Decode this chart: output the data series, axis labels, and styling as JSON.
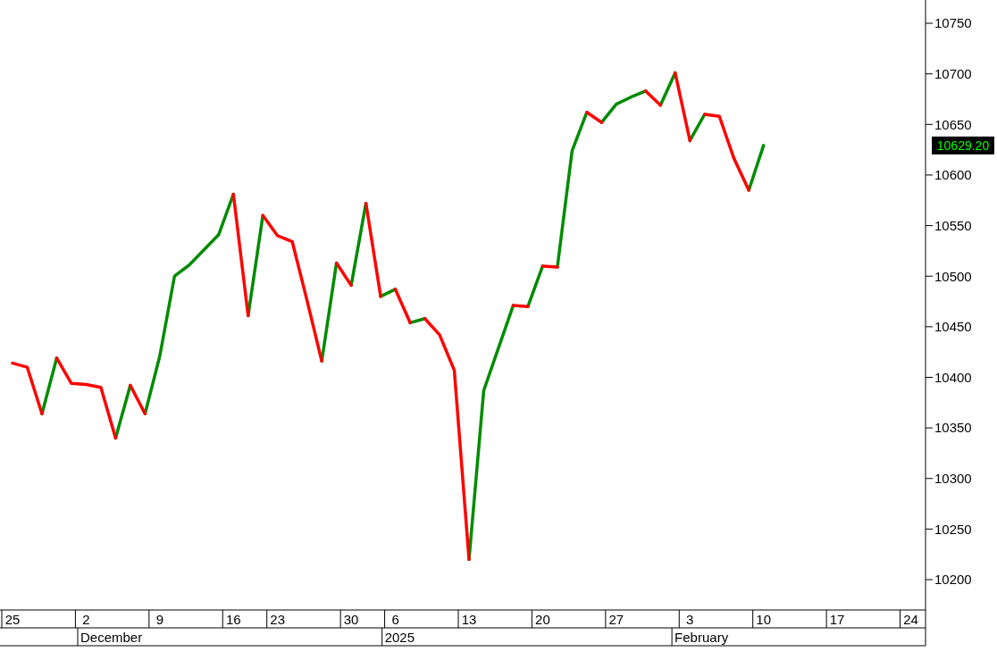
{
  "chart_data": {
    "type": "line",
    "categories": [
      "25",
      null,
      null,
      null,
      null,
      "2",
      null,
      null,
      null,
      null,
      "9",
      null,
      null,
      null,
      null,
      "16",
      null,
      null,
      "23",
      null,
      null,
      null,
      null,
      "30",
      null,
      null,
      "6",
      null,
      null,
      null,
      null,
      "13",
      null,
      null,
      null,
      null,
      "20",
      null,
      null,
      null,
      null,
      "27",
      null,
      null,
      null,
      null,
      "3",
      null,
      null,
      null,
      null,
      "10",
      null,
      null,
      null,
      null,
      "17",
      null,
      null,
      null,
      null,
      "24",
      null
    ],
    "series": [
      {
        "color": "#008c00",
        "values": [
          null,
          null,
          10364,
          10419,
          null,
          null,
          null,
          null,
          null,
          10364,
          10421,
          10500,
          10511,
          10526,
          10541,
          10581,
          null,
          null,
          null,
          null,
          null,
          10416,
          10513,
          null,
          null,
          10480,
          10487,
          null,
          null,
          null,
          null,
          10220,
          10387,
          10429,
          10471,
          null,
          null,
          10509,
          10624,
          10662,
          null,
          null,
          null,
          null,
          10669,
          10701,
          null,
          null,
          null,
          null,
          10585,
          10629.2,
          null,
          null,
          null,
          null,
          null,
          null,
          null,
          null,
          null,
          null,
          null
        ]
      },
      {
        "color": "#018a01",
        "values": [
          null,
          null,
          null,
          null,
          null,
          null,
          null,
          10340,
          10392,
          null,
          null,
          null,
          null,
          null,
          null,
          null,
          10461,
          10560,
          null,
          null,
          null,
          null,
          null,
          10491,
          10572,
          null,
          null,
          10454,
          10458,
          null,
          null,
          null,
          null,
          null,
          null,
          10470,
          10510,
          null,
          null,
          null,
          10652,
          10670,
          10677,
          10683,
          null,
          null,
          10634,
          10660,
          null,
          null,
          null,
          null,
          null,
          null,
          null,
          null,
          null,
          null,
          null,
          null,
          null,
          null,
          null
        ]
      },
      {
        "color": "#ff0000",
        "values": [
          10414,
          10410,
          10364,
          null,
          null,
          null,
          null,
          null,
          10392,
          10364,
          null,
          null,
          null,
          null,
          null,
          null,
          null,
          10560,
          10540,
          10534,
          10476,
          10416,
          null,
          null,
          10572,
          10480,
          null,
          null,
          10458,
          10442,
          10407,
          10220,
          null,
          null,
          null,
          null,
          10510,
          10509,
          null,
          null,
          null,
          null,
          null,
          10683,
          10669,
          null,
          null,
          10660,
          10658,
          10616,
          10585,
          null,
          null,
          null,
          null,
          null,
          null,
          null,
          null,
          null,
          null,
          null,
          null
        ]
      },
      {
        "color": "#fd0202",
        "values": [
          null,
          null,
          null,
          10419,
          10394,
          10393,
          10390,
          10340,
          null,
          null,
          null,
          null,
          null,
          null,
          null,
          10581,
          10461,
          null,
          null,
          null,
          null,
          null,
          10513,
          10491,
          null,
          null,
          10487,
          10454,
          null,
          null,
          null,
          null,
          null,
          null,
          10471,
          10470,
          null,
          null,
          null,
          10662,
          10652,
          null,
          null,
          null,
          null,
          10701,
          10634,
          null,
          null,
          null,
          null,
          null,
          null,
          null,
          null,
          null,
          null,
          null,
          null,
          null,
          null,
          null,
          null
        ]
      }
    ],
    "ylim": [
      10170,
      10773
    ],
    "yticks": [
      10200,
      10250,
      10300,
      10350,
      10400,
      10450,
      10500,
      10550,
      10600,
      10650,
      10700,
      10750
    ],
    "grid": false,
    "legend": false,
    "marker": "none",
    "line_style": "solid",
    "annotations": [
      "December",
      "2025",
      "February",
      "10629.20"
    ]
  }
}
